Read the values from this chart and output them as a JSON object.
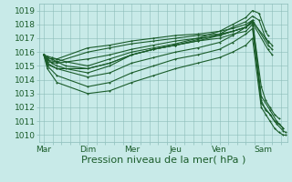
{
  "bg_color": "#c8eae8",
  "grid_color": "#8bbcb8",
  "line_color": "#1a5c2a",
  "marker_color": "#1a5c2a",
  "xlabel": "Pression niveau de la mer( hPa )",
  "xtick_labels": [
    "Mar",
    "Dim",
    "Mer",
    "Jeu",
    "Ven",
    "Sam"
  ],
  "ylim": [
    1009.5,
    1019.5
  ],
  "yticks": [
    1010,
    1011,
    1012,
    1013,
    1014,
    1015,
    1016,
    1017,
    1018,
    1019
  ],
  "xlim": [
    -0.1,
    5.55
  ],
  "xlabel_fontsize": 8,
  "tick_fontsize": 6.5,
  "lines": [
    {
      "x": [
        0.0,
        0.08,
        0.18,
        0.3,
        0.5,
        1.0,
        1.5,
        2.0,
        2.5,
        3.0,
        3.5,
        4.0,
        4.3,
        4.6,
        4.75,
        4.9,
        5.05,
        5.1
      ],
      "y": [
        1015.8,
        1015.7,
        1015.6,
        1015.5,
        1015.3,
        1015.0,
        1015.5,
        1016.0,
        1016.3,
        1016.6,
        1017.0,
        1017.5,
        1018.0,
        1018.5,
        1019.0,
        1018.8,
        1017.5,
        1017.2
      ]
    },
    {
      "x": [
        0.0,
        0.08,
        0.18,
        0.3,
        0.5,
        1.0,
        1.5,
        2.0,
        2.5,
        3.0,
        3.5,
        4.0,
        4.3,
        4.6,
        4.75,
        4.9,
        5.05,
        5.1
      ],
      "y": [
        1015.8,
        1015.6,
        1015.5,
        1015.3,
        1015.0,
        1014.8,
        1015.2,
        1015.8,
        1016.2,
        1016.5,
        1016.9,
        1017.3,
        1017.8,
        1018.2,
        1018.6,
        1018.3,
        1017.0,
        1016.7
      ]
    },
    {
      "x": [
        0.0,
        0.08,
        0.18,
        0.3,
        0.5,
        1.0,
        1.5,
        2.0,
        2.5,
        3.0,
        3.5,
        4.0,
        4.3,
        4.6,
        4.75,
        5.1,
        5.2
      ],
      "y": [
        1015.8,
        1015.5,
        1015.2,
        1015.0,
        1014.8,
        1014.5,
        1015.0,
        1015.8,
        1016.2,
        1016.5,
        1016.8,
        1017.2,
        1017.5,
        1017.8,
        1018.2,
        1016.8,
        1016.5
      ]
    },
    {
      "x": [
        0.0,
        0.08,
        0.3,
        1.0,
        1.5,
        2.0,
        2.5,
        3.0,
        3.5,
        4.0,
        4.3,
        4.6,
        4.75,
        5.1,
        5.2
      ],
      "y": [
        1015.8,
        1015.5,
        1015.5,
        1016.3,
        1016.5,
        1016.8,
        1017.0,
        1017.2,
        1017.3,
        1017.5,
        1017.7,
        1018.0,
        1018.3,
        1016.5,
        1016.2
      ]
    },
    {
      "x": [
        0.0,
        0.08,
        0.3,
        1.0,
        1.5,
        2.0,
        2.5,
        3.0,
        3.5,
        4.0,
        4.3,
        4.6,
        4.75,
        5.1,
        5.2
      ],
      "y": [
        1015.8,
        1015.4,
        1015.3,
        1016.0,
        1016.3,
        1016.6,
        1016.8,
        1017.0,
        1017.2,
        1017.3,
        1017.5,
        1017.8,
        1018.1,
        1016.2,
        1015.8
      ]
    },
    {
      "x": [
        0.0,
        0.08,
        0.3,
        1.0,
        1.5,
        2.0,
        2.5,
        3.0,
        3.5,
        4.0,
        4.3,
        4.6,
        4.75,
        4.95,
        5.05,
        5.15,
        5.25,
        5.35
      ],
      "y": [
        1015.8,
        1015.2,
        1014.8,
        1014.2,
        1014.5,
        1015.2,
        1015.6,
        1016.0,
        1016.3,
        1016.7,
        1017.2,
        1017.8,
        1018.2,
        1013.5,
        1012.5,
        1012.0,
        1011.5,
        1011.2
      ]
    },
    {
      "x": [
        0.0,
        0.08,
        0.3,
        1.0,
        1.5,
        2.0,
        2.5,
        3.0,
        3.5,
        4.0,
        4.3,
        4.6,
        4.75,
        4.95,
        5.05,
        5.15,
        5.25,
        5.35,
        5.45
      ],
      "y": [
        1015.8,
        1015.0,
        1014.3,
        1013.5,
        1013.8,
        1014.5,
        1015.0,
        1015.5,
        1015.8,
        1016.2,
        1016.7,
        1017.3,
        1017.7,
        1012.5,
        1011.8,
        1011.5,
        1011.0,
        1010.8,
        1010.5
      ]
    },
    {
      "x": [
        0.0,
        0.08,
        0.3,
        1.0,
        1.5,
        2.0,
        2.5,
        3.0,
        3.5,
        4.0,
        4.3,
        4.6,
        4.75,
        4.95,
        5.05,
        5.15,
        5.25,
        5.35,
        5.45,
        5.5
      ],
      "y": [
        1015.8,
        1014.8,
        1013.8,
        1013.0,
        1013.2,
        1013.8,
        1014.3,
        1014.8,
        1015.2,
        1015.6,
        1016.0,
        1016.5,
        1017.0,
        1012.0,
        1011.5,
        1011.0,
        1010.5,
        1010.2,
        1010.0,
        1010.0
      ]
    },
    {
      "x": [
        0.0,
        0.08,
        0.3,
        1.0,
        1.5,
        2.0,
        2.5,
        3.0,
        3.5,
        4.0,
        4.3,
        4.6,
        4.75,
        4.95,
        5.15,
        5.3,
        5.45
      ],
      "y": [
        1015.8,
        1015.3,
        1015.2,
        1015.5,
        1015.8,
        1016.2,
        1016.5,
        1016.8,
        1017.0,
        1017.2,
        1017.5,
        1017.8,
        1018.3,
        1012.8,
        1011.8,
        1011.0,
        1010.5
      ]
    },
    {
      "x": [
        0.0,
        0.08,
        0.3,
        1.0,
        1.5,
        2.0,
        2.5,
        3.0,
        3.5,
        4.0,
        4.3,
        4.6,
        4.75,
        4.95,
        5.15,
        5.3,
        5.45,
        5.5
      ],
      "y": [
        1015.8,
        1015.1,
        1014.8,
        1014.8,
        1015.2,
        1015.8,
        1016.2,
        1016.5,
        1016.8,
        1017.0,
        1017.3,
        1017.5,
        1018.0,
        1012.3,
        1011.5,
        1010.8,
        1010.3,
        1010.2
      ]
    }
  ]
}
